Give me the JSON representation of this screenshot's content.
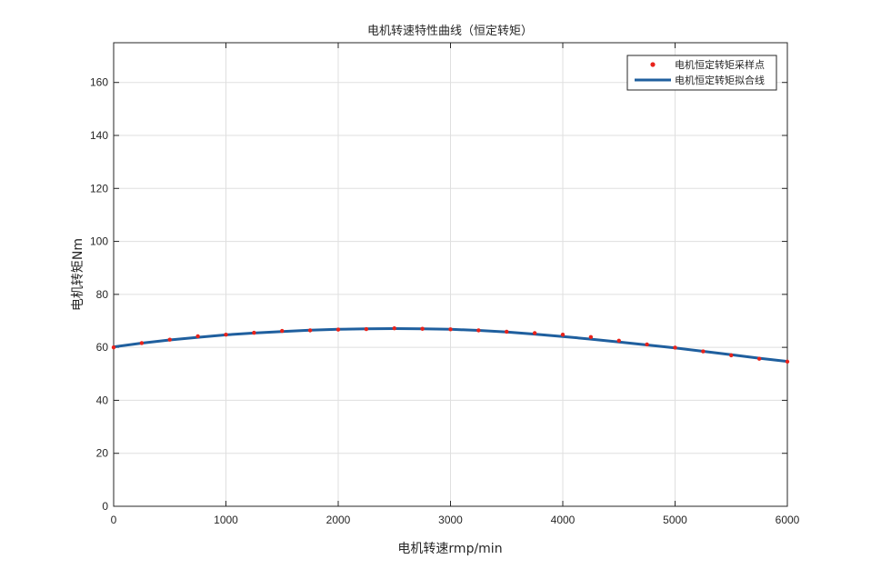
{
  "chart_data": {
    "type": "line",
    "title": "电机转速特性曲线（恒定转矩）",
    "xlabel": "电机转速rmp/min",
    "ylabel": "电机转矩Nm",
    "xlim": [
      0,
      6000
    ],
    "ylim": [
      0,
      175
    ],
    "xticks": [
      0,
      1000,
      2000,
      3000,
      4000,
      5000,
      6000
    ],
    "yticks": [
      0,
      20,
      40,
      60,
      80,
      100,
      120,
      140,
      160
    ],
    "grid": true,
    "legend_position": "top-right",
    "series": [
      {
        "name": "电机恒定转矩采样点",
        "kind": "scatter",
        "color": "#e8231b",
        "x": [
          0,
          250,
          500,
          750,
          1000,
          1250,
          1500,
          1750,
          2000,
          2250,
          2500,
          2750,
          3000,
          3250,
          3500,
          3750,
          4000,
          4250,
          4500,
          4750,
          5000,
          5250,
          5500,
          5750,
          6000
        ],
        "y": [
          60.0,
          61.6,
          62.9,
          64.2,
          64.8,
          65.5,
          66.2,
          66.4,
          66.7,
          66.9,
          67.2,
          67.0,
          66.8,
          66.4,
          65.9,
          65.4,
          64.8,
          63.9,
          62.5,
          61.1,
          59.9,
          58.5,
          57.0,
          55.7,
          54.6
        ]
      },
      {
        "name": "电机恒定转矩拟合线",
        "kind": "line",
        "color": "#1f5f9e",
        "x": [
          0,
          250,
          500,
          750,
          1000,
          1250,
          1500,
          1750,
          2000,
          2250,
          2500,
          2750,
          3000,
          3250,
          3500,
          3750,
          4000,
          4250,
          4500,
          4750,
          5000,
          5250,
          5500,
          5750,
          6000
        ],
        "y": [
          60.2,
          61.6,
          62.8,
          63.8,
          64.7,
          65.4,
          66.0,
          66.5,
          66.8,
          67.0,
          67.1,
          67.0,
          66.8,
          66.4,
          65.8,
          65.0,
          64.1,
          63.1,
          62.0,
          60.9,
          59.8,
          58.5,
          57.2,
          55.9,
          54.7
        ]
      }
    ]
  }
}
